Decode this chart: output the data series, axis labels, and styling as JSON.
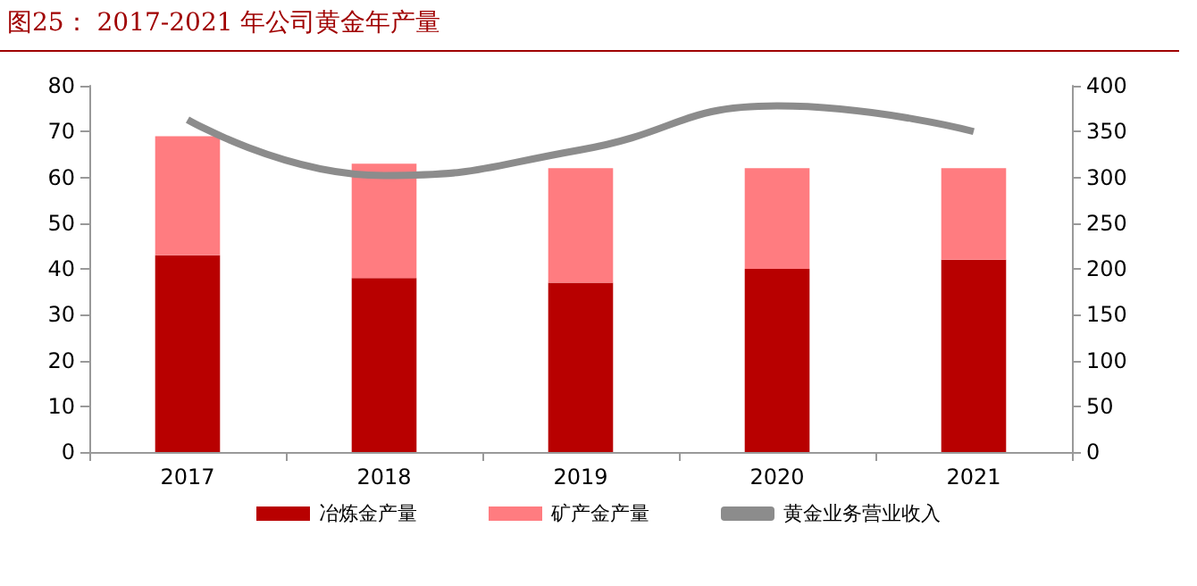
{
  "chart_data": {
    "type": "bar",
    "title": "图25： 2017-2021 年公司黄金年产量",
    "categories": [
      "2017",
      "2018",
      "2019",
      "2020",
      "2021"
    ],
    "stacked": true,
    "series": [
      {
        "name": "冶炼金产量",
        "color": "#b80000",
        "values": [
          43,
          38,
          37,
          40,
          42
        ]
      },
      {
        "name": "矿产金产量",
        "color": "#ff7c80",
        "values": [
          26,
          25,
          25,
          22,
          20
        ]
      },
      {
        "name": "黄金业务营业收入",
        "type": "line",
        "axis": "y2",
        "color": "#8c8c8c",
        "values": [
          363,
          302,
          330,
          378,
          350
        ]
      }
    ],
    "ylim": [
      0,
      80
    ],
    "yticks": [
      0,
      10,
      20,
      30,
      40,
      50,
      60,
      70,
      80
    ],
    "y2lim": [
      0,
      400
    ],
    "y2ticks": [
      0,
      50,
      100,
      150,
      200,
      250,
      300,
      350,
      400
    ],
    "grid": false,
    "legend": "bottom",
    "marker": "none"
  }
}
